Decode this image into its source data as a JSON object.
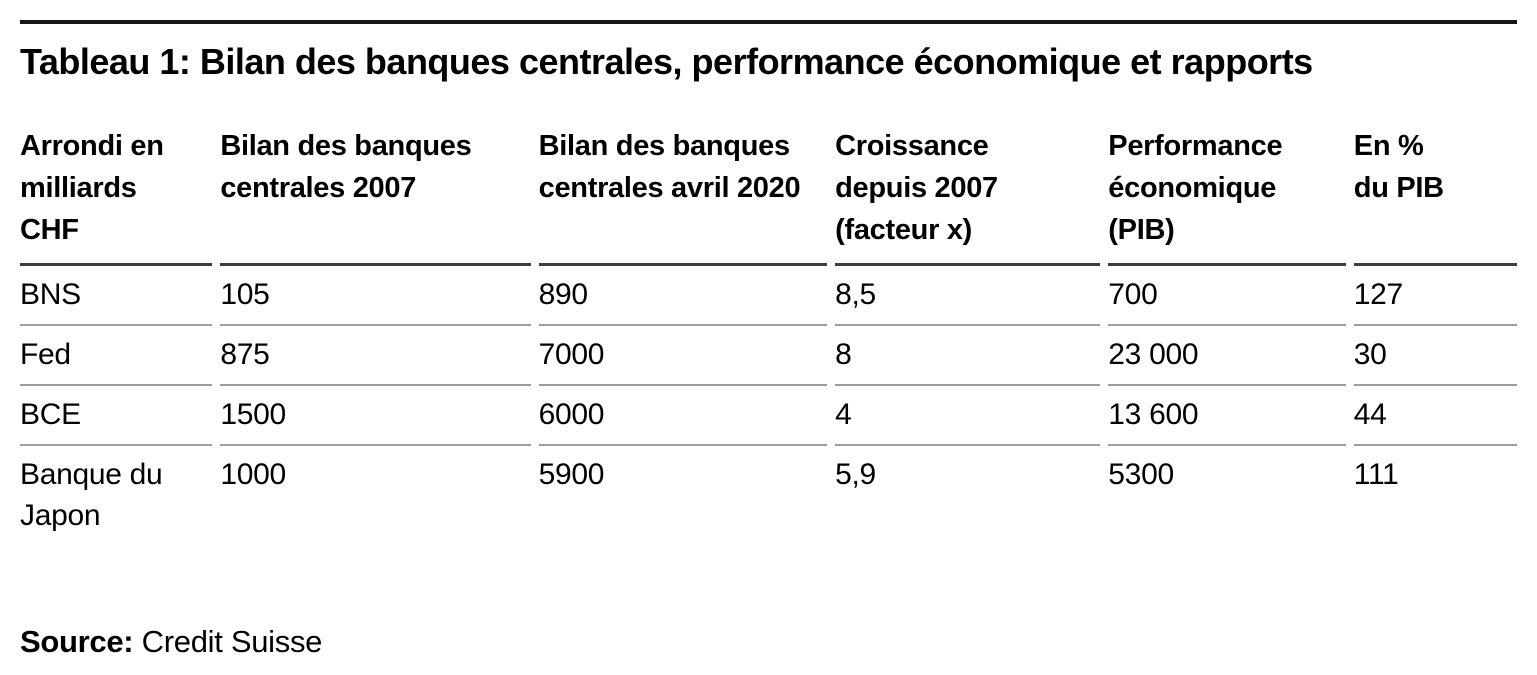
{
  "chart_data": {
    "type": "table",
    "title": "Tableau 1: Bilan des banques centrales, performance économique et rapports",
    "columns": [
      "Arrondi en\nmilliards\nCHF",
      "Bilan des banques\ncentrales 2007",
      "Bilan des banques\ncentrales avril 2020",
      "Croissance\ndepuis 2007\n(facteur x)",
      "Performance\néconomique\n(PIB)",
      "En %\ndu PIB"
    ],
    "rows": [
      [
        "BNS",
        "105",
        "890",
        "8,5",
        "700",
        "127"
      ],
      [
        "Fed",
        "875",
        "7000",
        "8",
        "23 000",
        "30"
      ],
      [
        "BCE",
        "1500",
        "6000",
        "4",
        "13 600",
        "44"
      ],
      [
        "Banque du Japon",
        "1000",
        "5900",
        "5,9",
        "5300",
        "111"
      ]
    ],
    "source_label": "Source:",
    "source_text": " Credit Suisse"
  },
  "colors": {
    "top_rule": "#161616",
    "header_rule": "#3e3e3e",
    "row_rule": "#9d9d9d",
    "text": "#000000",
    "background": "#ffffff"
  }
}
